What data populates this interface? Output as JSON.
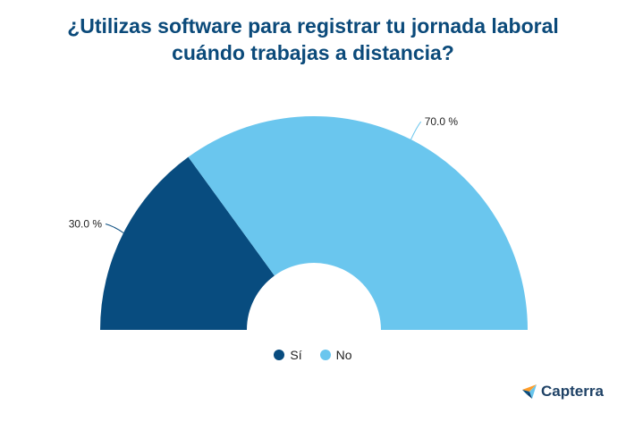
{
  "chart_data": {
    "type": "pie",
    "style": "semi-donut",
    "title_lines": [
      "¿Utilizas software para registrar tu jornada laboral",
      "cuándo trabajas a distancia?"
    ],
    "slices": [
      {
        "name": "Sí",
        "value": 30.0,
        "label": "30.0 %",
        "color": "#084c7f"
      },
      {
        "name": "No",
        "value": 70.0,
        "label": "70.0 %",
        "color": "#6ac6ee"
      }
    ],
    "legend_position": "bottom-center"
  },
  "brand": {
    "logo_text": "Capterra",
    "icon": "capterra-arrow-icon",
    "colors": [
      "#ff9d28",
      "#68c5ed",
      "#0a3f6e",
      "#044d80"
    ]
  }
}
